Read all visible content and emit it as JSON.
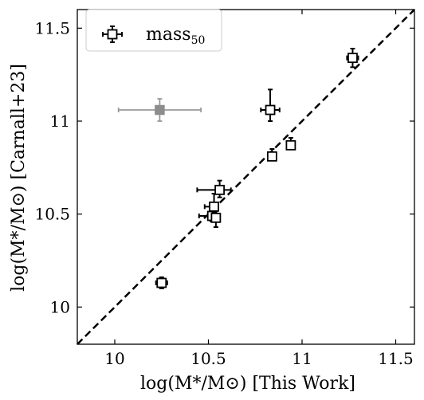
{
  "chart_data": {
    "type": "scatter",
    "xlabel": "log(M*/M⊙) [This Work]",
    "ylabel": "log(M*/M⊙) [Carnall+23]",
    "xlim": [
      9.8,
      11.6
    ],
    "ylim": [
      9.8,
      11.6
    ],
    "xticks": [
      10,
      10.5,
      11,
      11.5
    ],
    "yticks": [
      10,
      10.5,
      11,
      11.5
    ],
    "xtick_labels": [
      "10",
      "10.5",
      "11",
      "11.5"
    ],
    "ytick_labels": [
      "10",
      "10.5",
      "11",
      "11.5"
    ],
    "grid": false,
    "legend_position": "top-left",
    "one_to_one_line": true,
    "series": [
      {
        "name": "mass",
        "name_subscript": "50",
        "marker": "square-open",
        "points": [
          {
            "x": 10.25,
            "y": 10.13,
            "xerr": [
              0.03,
              0.03
            ],
            "yerr": [
              0.03,
              0.03
            ]
          },
          {
            "x": 10.52,
            "y": 10.49,
            "xerr": [
              0.07,
              0.02
            ],
            "yerr": [
              0.03,
              0.04
            ]
          },
          {
            "x": 10.54,
            "y": 10.48,
            "xerr": [
              0.02,
              0.01
            ],
            "yerr": [
              0.05,
              0.02
            ]
          },
          {
            "x": 10.53,
            "y": 10.54,
            "xerr": [
              0.05,
              0.02
            ],
            "yerr": [
              0.03,
              0.07
            ]
          },
          {
            "x": 10.56,
            "y": 10.63,
            "xerr": [
              0.12,
              0.06
            ],
            "yerr": [
              0.04,
              0.05
            ]
          },
          {
            "x": 10.84,
            "y": 10.81,
            "xerr": [
              0.02,
              0.02
            ],
            "yerr": [
              0.02,
              0.04
            ]
          },
          {
            "x": 10.94,
            "y": 10.87,
            "xerr": [
              0.02,
              0.02
            ],
            "yerr": [
              0.02,
              0.04
            ]
          },
          {
            "x": 10.83,
            "y": 11.06,
            "xerr": [
              0.05,
              0.05
            ],
            "yerr": [
              0.06,
              0.11
            ]
          },
          {
            "x": 11.27,
            "y": 11.34,
            "xerr": [
              0.03,
              0.03
            ],
            "yerr": [
              0.05,
              0.05
            ]
          }
        ]
      },
      {
        "name": "",
        "marker": "square-filled-gray",
        "points": [
          {
            "x": 10.24,
            "y": 11.06,
            "xerr": [
              0.22,
              0.22
            ],
            "yerr": [
              0.06,
              0.06
            ]
          }
        ]
      }
    ]
  }
}
